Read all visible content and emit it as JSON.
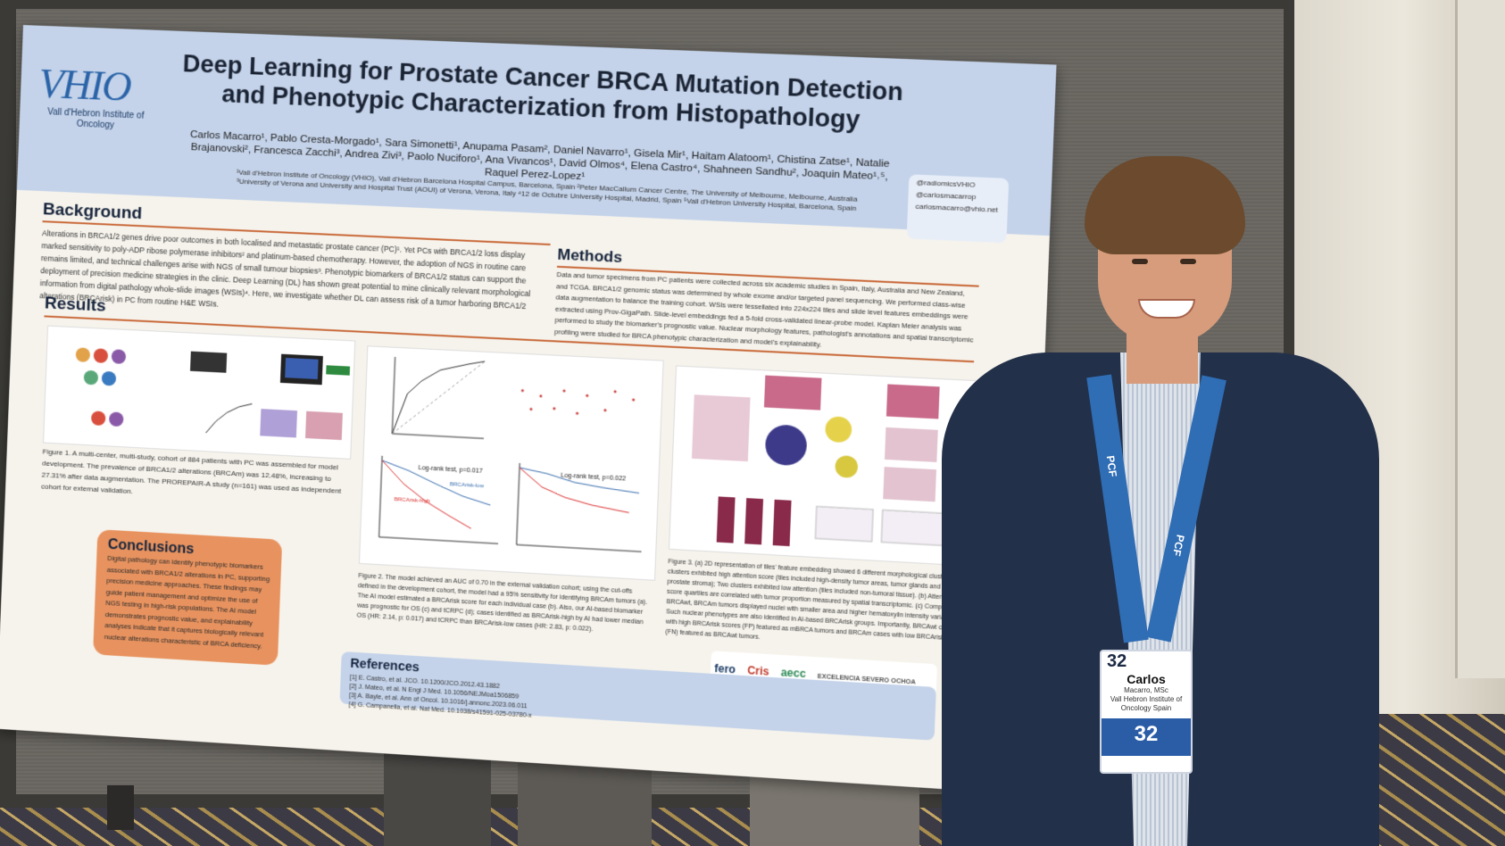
{
  "poster": {
    "logo_text": "VHIO",
    "logo_sub": "Vall d'Hebron Institute of Oncology",
    "title": "Deep Learning for Prostate Cancer BRCA Mutation Detection and Phenotypic Characterization from Histopathology",
    "authors": "Carlos Macarro¹, Pablo Cresta-Morgado¹, Sara Simonetti¹, Anupama Pasam², Daniel Navarro¹, Gisela Mir¹, Haitam Alatoom¹, Chistina Zatse¹, Natalie Brajanovski², Francesca Zacchi³, Andrea Zivi³, Paolo Nuciforo¹, Ana Vivancos¹, David Olmos⁴, Elena Castro⁴, Shahneen Sandhu², Joaquin Mateo¹˒⁵, Raquel Perez-Lopez¹",
    "affiliations": "¹Vall d'Hebron Institute of Oncology (VHIO), Vall d'Hebron Barcelona Hospital Campus, Barcelona, Spain ²Peter MacCallum Cancer Centre, The University of Melbourne, Melbourne, Australia ³University of Verona and University and Hospital Trust (AOUI) of Verona, Verona, Italy ⁴12 de Octubre University Hospital, Madrid, Spain ⁵Vall d'Hebron University Hospital, Barcelona, Spain",
    "social": [
      "@radiomicsVHIO",
      "@carlosmacarrop",
      "carlosmacarro@vhio.net"
    ],
    "background_heading": "Background",
    "background_text": "Alterations in BRCA1/2 genes drive poor outcomes in both localised and metastatic prostate cancer (PC)¹. Yet PCs with BRCA1/2 loss display marked sensitivity to poly-ADP ribose polymerase inhibitors² and platinum-based chemotherapy. However, the adoption of NGS in routine care remains limited, and technical challenges arise with NGS of small tumour biopsies³. Phenotypic biomarkers of BRCA1/2 status can support the deployment of precision medicine strategies in the clinic. Deep Learning (DL) has shown great potential to mine clinically relevant morphological information from digital pathology whole-slide images (WSIs)⁴. Here, we investigate whether DL can assess risk of a tumor harboring BRCA1/2 alterations (BRCArisk) in PC from routine H&E WSIs.",
    "methods_heading": "Methods",
    "methods_text": "Data and tumor specimens from PC patients were collected across six academic studies in Spain, Italy, Australia and New Zealand, and TCGA. BRCA1/2 genomic status was determined by whole exome and/or targeted panel sequencing. We performed class-wise data augmentation to balance the training cohort. WSIs were tessellated into 224x224 tiles and slide level features embeddings were extracted using Prov-GigaPath. Slide-level embeddings fed a 5-fold cross-validated linear-probe model. Kaplan Meier analysis was performed to study the biomarker's prognostic value. Nuclear morphology features, pathologist's annotations and spatial transcriptomic profiling were studied for BRCA phenotypic characterization and model's explainability.",
    "results_heading": "Results",
    "figure1_caption": "Figure 1. A multi-center, multi-study, cohort of 884 patients with PC was assembled for model development. The prevalence of BRCA1/2 alterations (BRCAm) was 12.48%, increasing to 27.31% after data augmentation. The PROREPAIR-A study (n=161) was used as independent cohort for external validation.",
    "figure2_caption": "Figure 2. The model achieved an AUC of 0.70 in the external validation cohort; using the cut-offs defined in the development cohort, the model had a 95% sensitivity for identifying BRCAm tumors (a). The AI model estimated a BRCArisk score for each individual case (b). Also, our AI-based biomarker was prognostic for OS (c) and tCRPC (d); cases identified as BRCArisk-high by AI had lower median OS (HR: 2.14, p: 0.017) and tCRPC than BRCArisk-low cases (HR: 2.83, p: 0.022).",
    "figure3_caption": "Figure 3. (a) 2D representation of tiles' feature embedding showed 6 different morphological clusters. Four clusters exhibited high attention score (tiles included high-density tumor areas, tumor glands and dense prostate stroma); Two clusters exhibited low attention (tiles included non-tumoral tissue). (b) Attention score quartiles are correlated with tumor proportion measured by spatial transcriptomic. (c) Compared with BRCAwt, BRCAm tumors displayed nuclei with smaller area and higher hematoxylin intensity variability. Such nuclear phenotypes are also identified in AI-based BRCArisk groups. Importantly, BRCAwt cases with high BRCArisk scores (FP) featured as mBRCA tumors and BRCAm cases with low BRCArisk scores (FN) featured as BRCAwt tumors.",
    "km_c": "Log-rank test, p=0.017",
    "km_d": "Log-rank test, p=0.022",
    "brca_low": "BRCArisk-low",
    "brca_high": "BRCArisk-high",
    "conclusions_heading": "Conclusions",
    "conclusions_text": "Digital pathology can identify phenotypic biomarkers associated with BRCA1/2 alterations in PC, supporting precision medicine approaches. These findings may guide patient management and optimize the use of NGS testing in high-risk populations. The AI model demonstrates prognostic value, and explainability analyses indicate that it captures biologically relevant nuclear alterations characteristic of BRCA deficiency.",
    "references_heading": "References",
    "references": [
      "[1] E. Castro, et al. JCO. 10.1200/JCO.2012.43.1882",
      "[2] J. Mateo, et al. N Engl J Med. 10.1056/NEJMoa1506859",
      "[3] A. Bayle, et al. Ann of Oncol. 10.1016/j.annonc.2023.06.011",
      "[4] G. Campanella, et al. Nat Med. 10.1038/s41591-025-03780-x"
    ],
    "sponsors": [
      "fero",
      "Cris",
      "aecc",
      "EXCELENCIA SEVERO OCHOA"
    ]
  },
  "badge": {
    "number": "32",
    "name": "Carlos",
    "surname": "Macarro, MSc",
    "org": "Vall Hebron Institute of Oncology Spain",
    "event": "32",
    "lanyard_text": "PCF"
  },
  "colors": {
    "poster_header": "#c4d3ea",
    "conclusions_box": "#e8935f",
    "accent_rule": "#c96a3a",
    "jacket": "#223049",
    "lanyard": "#2f6db5"
  }
}
